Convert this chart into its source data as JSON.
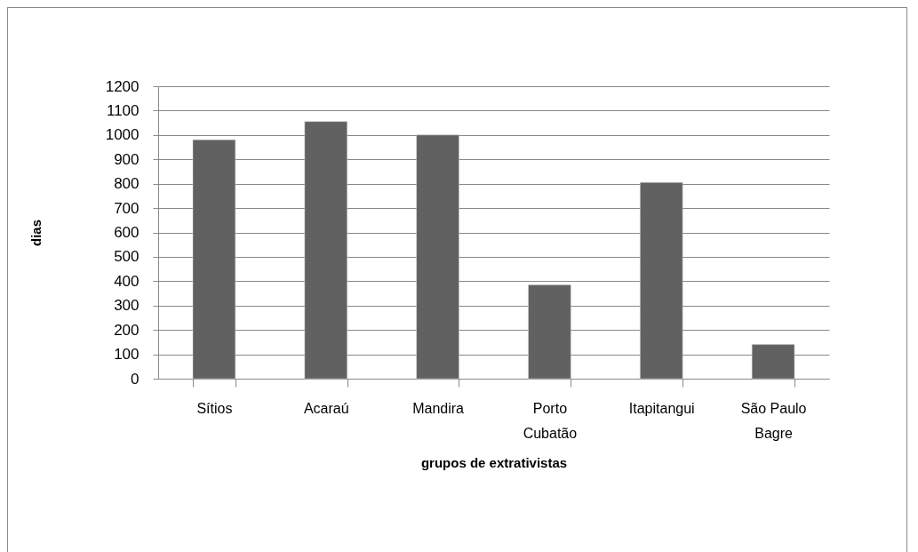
{
  "chart_data": {
    "type": "bar",
    "xlabel": "grupos de extrativistas",
    "ylabel": "dias",
    "categories": [
      "Sítios",
      "Acaraú",
      "Mandira",
      "Porto Cubatão",
      "Itapitangui",
      "São Paulo Bagre"
    ],
    "values": [
      980,
      1055,
      1000,
      385,
      805,
      140
    ],
    "color": "#616161",
    "ylim": [
      0,
      1200
    ],
    "yticks": [
      0,
      100,
      200,
      300,
      400,
      500,
      600,
      700,
      800,
      900,
      1000,
      1100,
      1200
    ],
    "grid": "y"
  }
}
